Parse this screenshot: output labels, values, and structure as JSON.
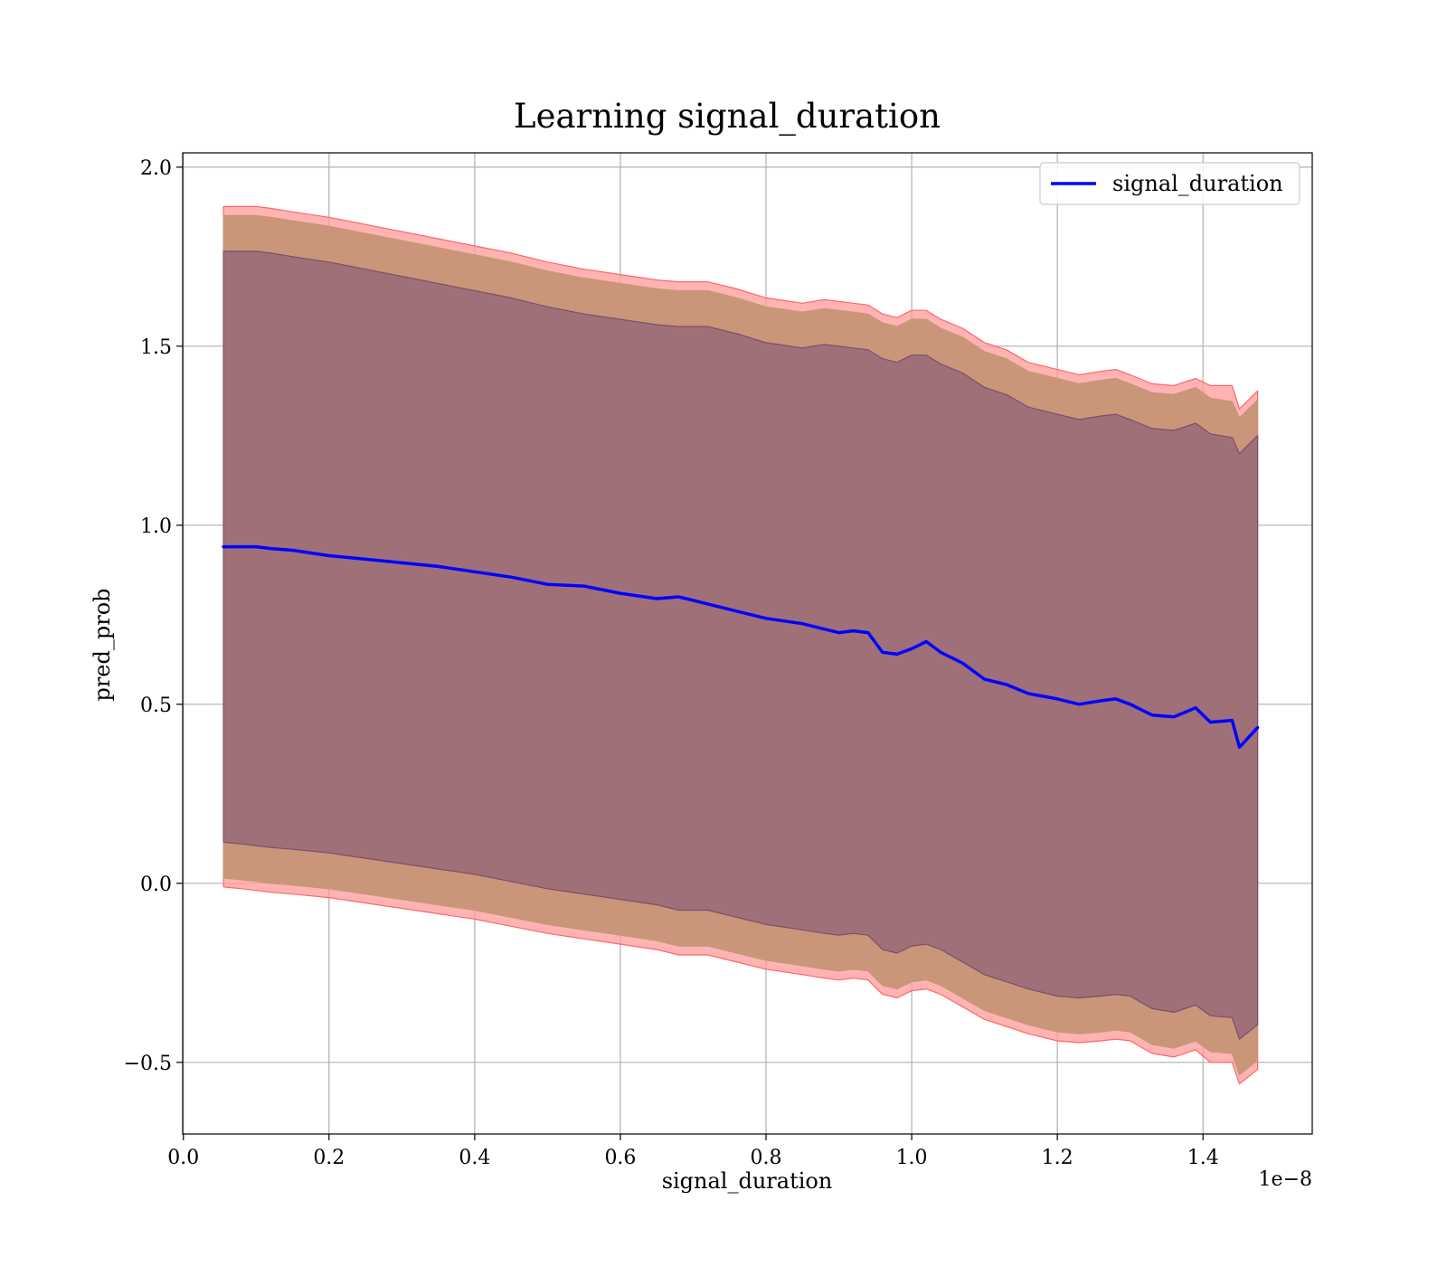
{
  "chart_data": {
    "type": "line",
    "title": "Learning signal_duration",
    "xlabel": "signal_duration",
    "ylabel": "pred_prob",
    "x_offset_label": "1e−8",
    "xlim": [
      -9.5e-12,
      1.55e-08
    ],
    "ylim": [
      -0.7,
      2.04
    ],
    "xticks": [
      0.0,
      0.2,
      0.4,
      0.6,
      0.8,
      1.0,
      1.2,
      1.4
    ],
    "xtick_labels": [
      "0.0",
      "0.2",
      "0.4",
      "0.6",
      "0.8",
      "1.0",
      "1.2",
      "1.4"
    ],
    "x_tick_scale": 1e-08,
    "yticks": [
      -0.5,
      0.0,
      0.5,
      1.0,
      1.5,
      2.0
    ],
    "ytick_labels": [
      "−0.5",
      "0.0",
      "0.5",
      "1.0",
      "1.5",
      "2.0"
    ],
    "grid": true,
    "legend_position": "top-right",
    "legend": [
      "signal_duration"
    ],
    "colors": {
      "line": "#0000ff",
      "band_outer": "#ff9999",
      "band_outer_edge": "#ff6666",
      "band_middle": "#c9967a",
      "band_inner": "#a07078",
      "band_inner_edge": "#7a4f6a"
    },
    "series": [
      {
        "name": "signal_duration",
        "x": [
          0.055,
          0.08,
          0.1,
          0.12,
          0.15,
          0.2,
          0.25,
          0.3,
          0.35,
          0.4,
          0.45,
          0.5,
          0.55,
          0.6,
          0.65,
          0.68,
          0.72,
          0.76,
          0.8,
          0.85,
          0.88,
          0.9,
          0.92,
          0.94,
          0.96,
          0.98,
          1.0,
          1.02,
          1.04,
          1.07,
          1.1,
          1.13,
          1.16,
          1.2,
          1.23,
          1.26,
          1.28,
          1.3,
          1.33,
          1.36,
          1.39,
          1.41,
          1.44,
          1.45,
          1.475
        ],
        "y": [
          0.94,
          0.94,
          0.94,
          0.935,
          0.93,
          0.915,
          0.905,
          0.895,
          0.885,
          0.87,
          0.855,
          0.835,
          0.83,
          0.81,
          0.795,
          0.8,
          0.78,
          0.76,
          0.74,
          0.725,
          0.71,
          0.7,
          0.705,
          0.7,
          0.645,
          0.64,
          0.655,
          0.675,
          0.645,
          0.615,
          0.57,
          0.555,
          0.53,
          0.515,
          0.5,
          0.51,
          0.515,
          0.5,
          0.47,
          0.465,
          0.49,
          0.45,
          0.455,
          0.38,
          0.435
        ]
      }
    ],
    "bands": [
      {
        "name": "outer",
        "upper": [
          1.89,
          1.89,
          1.89,
          1.885,
          1.875,
          1.86,
          1.84,
          1.82,
          1.8,
          1.78,
          1.76,
          1.735,
          1.715,
          1.7,
          1.685,
          1.68,
          1.68,
          1.66,
          1.635,
          1.62,
          1.63,
          1.625,
          1.62,
          1.615,
          1.59,
          1.58,
          1.6,
          1.6,
          1.575,
          1.55,
          1.51,
          1.49,
          1.455,
          1.435,
          1.42,
          1.43,
          1.435,
          1.42,
          1.395,
          1.39,
          1.41,
          1.39,
          1.39,
          1.325,
          1.375
        ],
        "lower": [
          -0.01,
          -0.015,
          -0.02,
          -0.025,
          -0.03,
          -0.04,
          -0.055,
          -0.07,
          -0.085,
          -0.1,
          -0.12,
          -0.14,
          -0.155,
          -0.17,
          -0.185,
          -0.2,
          -0.2,
          -0.22,
          -0.24,
          -0.255,
          -0.265,
          -0.27,
          -0.265,
          -0.27,
          -0.31,
          -0.32,
          -0.3,
          -0.295,
          -0.31,
          -0.345,
          -0.38,
          -0.4,
          -0.42,
          -0.44,
          -0.445,
          -0.44,
          -0.435,
          -0.44,
          -0.475,
          -0.485,
          -0.465,
          -0.5,
          -0.5,
          -0.56,
          -0.52
        ]
      },
      {
        "name": "middle",
        "upper": [
          1.865,
          1.865,
          1.865,
          1.86,
          1.85,
          1.835,
          1.815,
          1.795,
          1.775,
          1.755,
          1.735,
          1.71,
          1.69,
          1.675,
          1.66,
          1.655,
          1.655,
          1.635,
          1.61,
          1.595,
          1.605,
          1.6,
          1.595,
          1.59,
          1.565,
          1.555,
          1.575,
          1.575,
          1.55,
          1.525,
          1.485,
          1.465,
          1.43,
          1.41,
          1.395,
          1.405,
          1.41,
          1.395,
          1.37,
          1.365,
          1.385,
          1.355,
          1.345,
          1.3,
          1.35
        ],
        "lower": [
          0.015,
          0.01,
          0.005,
          0.0,
          -0.005,
          -0.015,
          -0.03,
          -0.045,
          -0.06,
          -0.075,
          -0.095,
          -0.115,
          -0.13,
          -0.145,
          -0.16,
          -0.175,
          -0.175,
          -0.195,
          -0.215,
          -0.23,
          -0.24,
          -0.245,
          -0.24,
          -0.245,
          -0.285,
          -0.295,
          -0.275,
          -0.27,
          -0.285,
          -0.32,
          -0.355,
          -0.375,
          -0.395,
          -0.415,
          -0.42,
          -0.415,
          -0.41,
          -0.415,
          -0.45,
          -0.46,
          -0.44,
          -0.47,
          -0.475,
          -0.535,
          -0.495
        ]
      },
      {
        "name": "inner",
        "upper": [
          1.765,
          1.765,
          1.765,
          1.76,
          1.75,
          1.735,
          1.715,
          1.695,
          1.675,
          1.655,
          1.635,
          1.61,
          1.59,
          1.575,
          1.56,
          1.555,
          1.555,
          1.535,
          1.51,
          1.495,
          1.505,
          1.5,
          1.495,
          1.49,
          1.465,
          1.455,
          1.475,
          1.475,
          1.45,
          1.425,
          1.385,
          1.365,
          1.33,
          1.31,
          1.295,
          1.305,
          1.31,
          1.295,
          1.27,
          1.265,
          1.285,
          1.255,
          1.245,
          1.2,
          1.25
        ],
        "lower": [
          0.115,
          0.11,
          0.105,
          0.1,
          0.095,
          0.085,
          0.07,
          0.055,
          0.04,
          0.025,
          0.005,
          -0.015,
          -0.03,
          -0.045,
          -0.06,
          -0.075,
          -0.075,
          -0.095,
          -0.115,
          -0.13,
          -0.14,
          -0.145,
          -0.14,
          -0.145,
          -0.185,
          -0.195,
          -0.175,
          -0.17,
          -0.185,
          -0.22,
          -0.255,
          -0.275,
          -0.295,
          -0.315,
          -0.32,
          -0.315,
          -0.31,
          -0.315,
          -0.35,
          -0.36,
          -0.34,
          -0.37,
          -0.375,
          -0.435,
          -0.395
        ]
      }
    ]
  }
}
